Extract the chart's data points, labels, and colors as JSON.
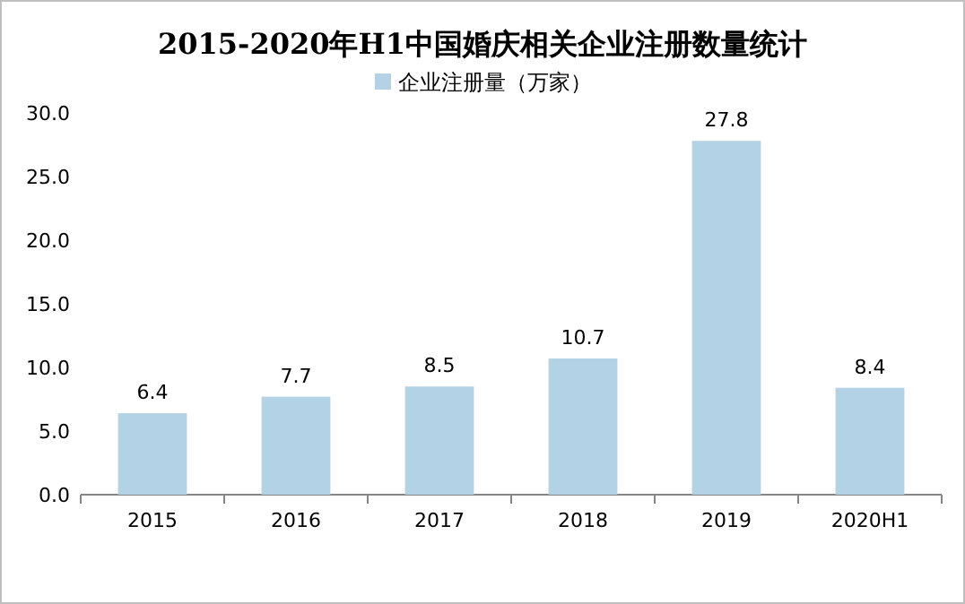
{
  "chart_data": {
    "type": "bar",
    "title": "2015-2020年H1中国婚庆相关企业注册数量统计",
    "categories": [
      "2015",
      "2016",
      "2017",
      "2018",
      "2019",
      "2020H1"
    ],
    "series": [
      {
        "name": "企业注册量（万家）",
        "color": "#b4d2e6",
        "values": [
          6.4,
          7.7,
          8.5,
          10.7,
          27.8,
          8.4
        ]
      }
    ],
    "ylim": [
      0,
      30
    ],
    "yticks": [
      {
        "value": 0,
        "label": "0.0"
      },
      {
        "value": 5,
        "label": "5.0"
      },
      {
        "value": 10,
        "label": "10.0"
      },
      {
        "value": 15,
        "label": "15.0"
      },
      {
        "value": 20,
        "label": "20.0"
      },
      {
        "value": 25,
        "label": "25.0"
      },
      {
        "value": 30,
        "label": "30.0"
      }
    ],
    "data_labels": true,
    "legend": "top",
    "grid": false
  }
}
